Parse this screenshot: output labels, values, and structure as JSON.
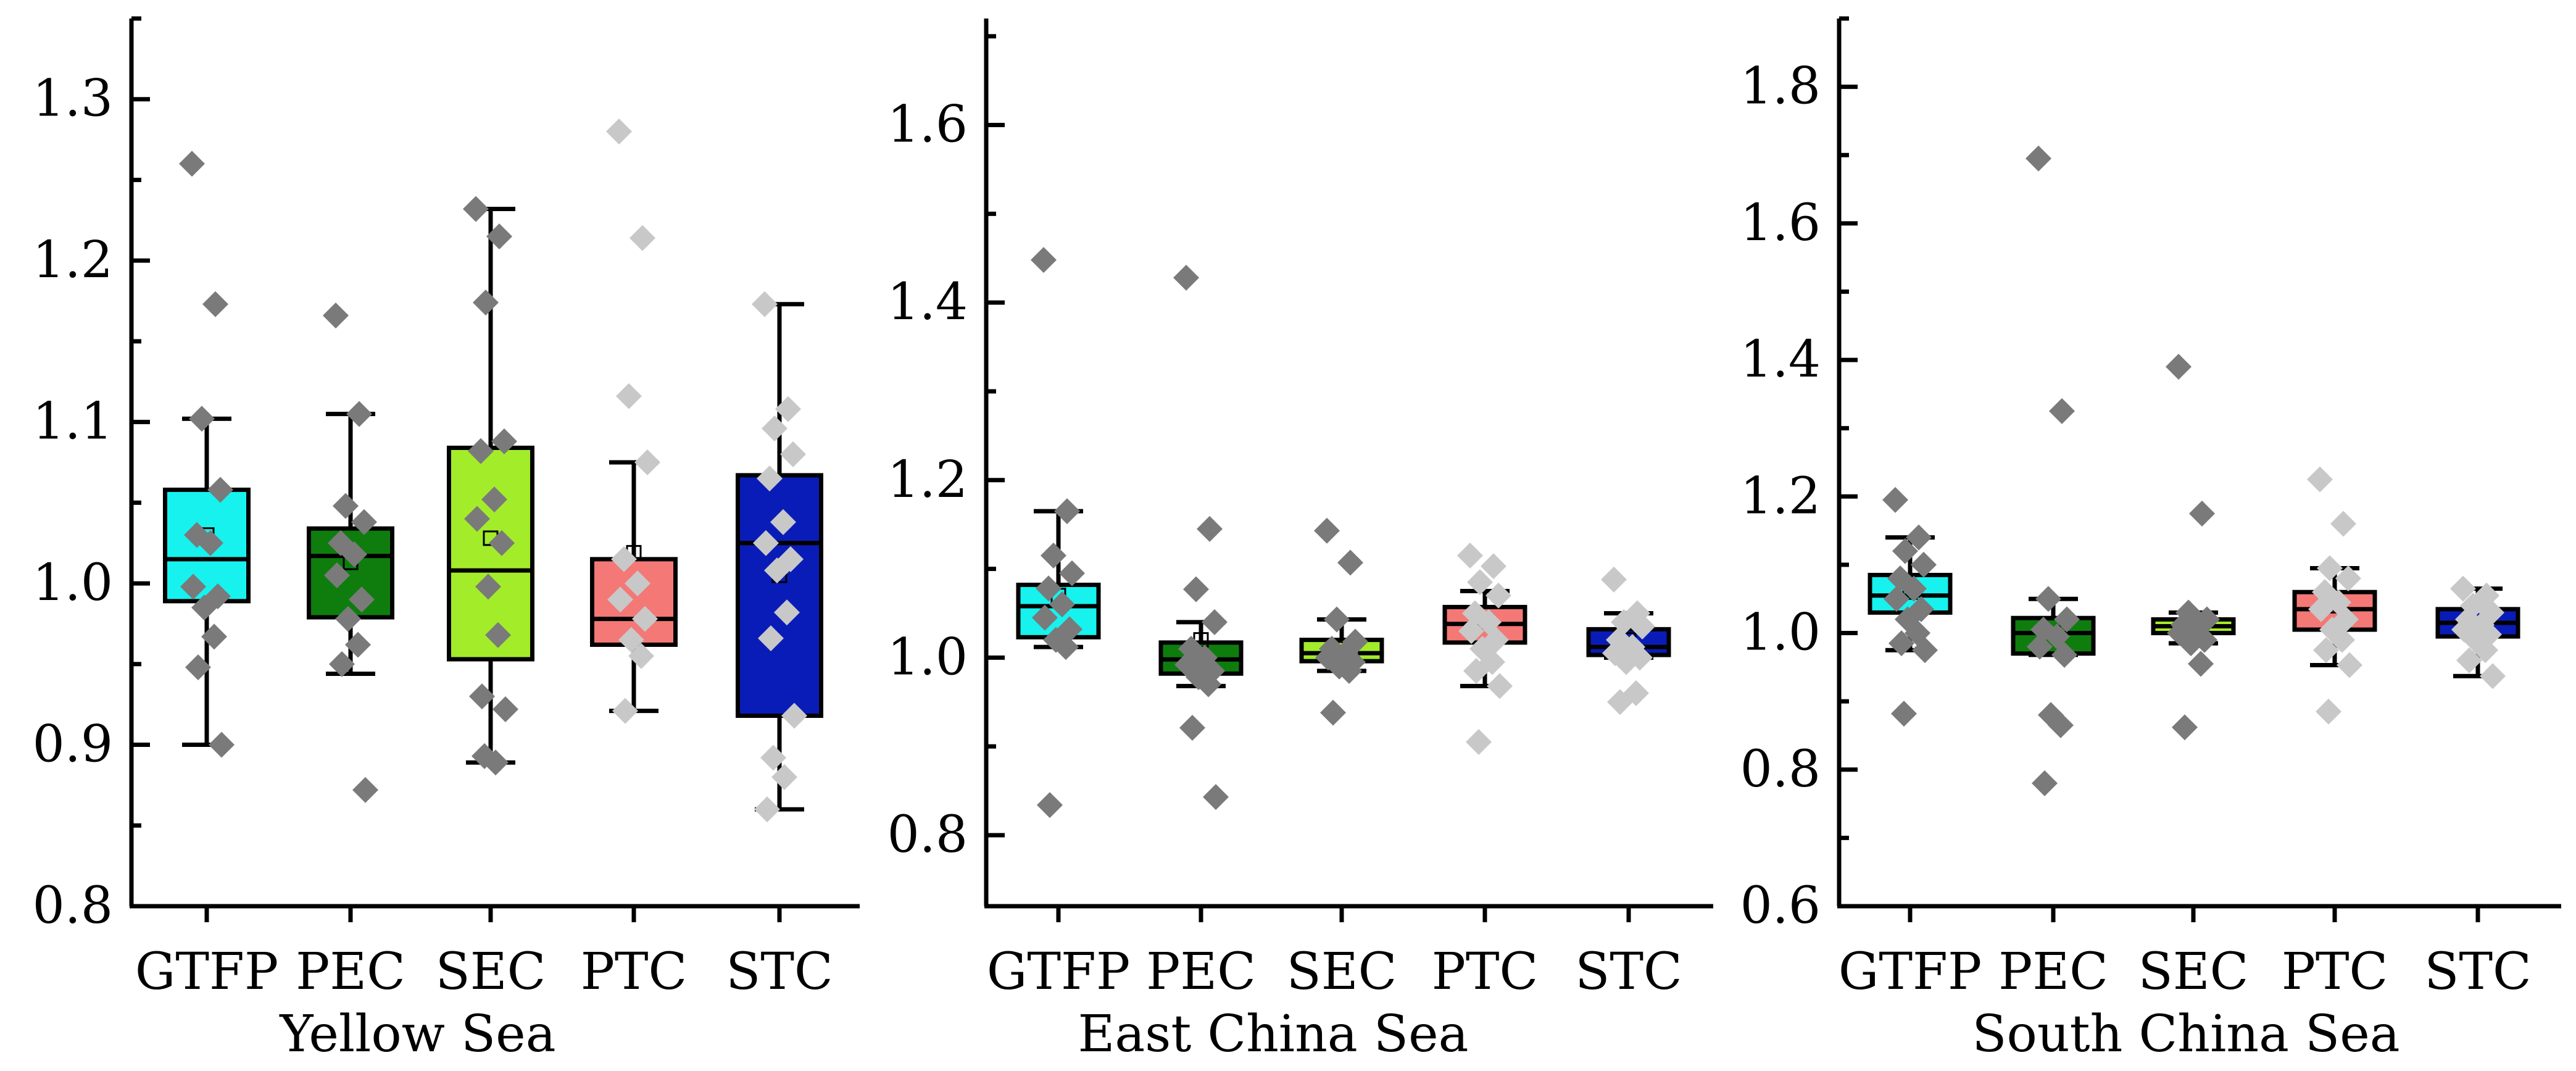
{
  "chart_data": [
    {
      "type": "box",
      "xlabel": "Yellow Sea",
      "ylim": [
        0.8,
        1.35
      ],
      "yticks": [
        0.8,
        0.9,
        1.0,
        1.1,
        1.2,
        1.3
      ],
      "ytick_labels": [
        "0.8",
        "0.9",
        "1.0",
        "1.1",
        "1.2",
        "1.3"
      ],
      "minor_step": 0.05,
      "categories": [
        "GTFP",
        "PEC",
        "SEC",
        "PTC",
        "STC"
      ],
      "boxes": [
        {
          "name": "GTFP",
          "color": "#17F2EE",
          "whisker_low": 0.9,
          "q1": 0.989,
          "median": 1.015,
          "q3": 1.058,
          "whisker_high": 1.102,
          "mean": 1.03,
          "points": [
            1.26,
            1.173,
            1.102,
            1.058,
            1.03,
            1.025,
            0.998,
            0.992,
            0.985,
            0.967,
            0.948,
            0.9
          ],
          "point_shade": "dark"
        },
        {
          "name": "PEC",
          "color": "#0E7D0E",
          "whisker_low": 0.944,
          "q1": 0.979,
          "median": 1.017,
          "q3": 1.034,
          "whisker_high": 1.105,
          "mean": 1.013,
          "points": [
            1.166,
            1.105,
            1.048,
            1.038,
            1.025,
            1.018,
            1.005,
            0.99,
            0.978,
            0.962,
            0.95,
            0.872
          ],
          "point_shade": "dark"
        },
        {
          "name": "SEC",
          "color": "#A3EC2A",
          "whisker_low": 0.889,
          "q1": 0.953,
          "median": 1.008,
          "q3": 1.084,
          "whisker_high": 1.232,
          "mean": 1.028,
          "points": [
            1.232,
            1.215,
            1.174,
            1.088,
            1.082,
            1.052,
            1.04,
            1.025,
            0.998,
            0.968,
            0.93,
            0.922,
            0.893,
            0.889
          ],
          "point_shade": "dark"
        },
        {
          "name": "PTC",
          "color": "#F47875",
          "whisker_low": 0.921,
          "q1": 0.962,
          "median": 0.978,
          "q3": 1.015,
          "whisker_high": 1.075,
          "mean": 1.019,
          "points": [
            1.28,
            1.214,
            1.116,
            1.075,
            1.015,
            1.0,
            0.99,
            0.978,
            0.965,
            0.955,
            0.921
          ],
          "point_shade": "light"
        },
        {
          "name": "STC",
          "color": "#0A1CB7",
          "whisker_low": 0.86,
          "q1": 0.918,
          "median": 1.025,
          "q3": 1.067,
          "whisker_high": 1.173,
          "mean": 1.005,
          "points": [
            1.173,
            1.108,
            1.096,
            1.08,
            1.065,
            1.038,
            1.025,
            1.015,
            1.008,
            0.982,
            0.966,
            0.918,
            0.892,
            0.88,
            0.86
          ],
          "point_shade": "light"
        }
      ]
    },
    {
      "type": "box",
      "xlabel": "East China Sea",
      "ylim": [
        0.72,
        1.72
      ],
      "yticks": [
        0.8,
        1.0,
        1.2,
        1.4,
        1.6
      ],
      "ytick_labels": [
        "0.8",
        "1.0",
        "1.2",
        "1.4",
        "1.6"
      ],
      "minor_step": 0.1,
      "categories": [
        "GTFP",
        "PEC",
        "SEC",
        "PTC",
        "STC"
      ],
      "boxes": [
        {
          "name": "GTFP",
          "color": "#17F2EE",
          "whisker_low": 1.012,
          "q1": 1.023,
          "median": 1.058,
          "q3": 1.082,
          "whisker_high": 1.165,
          "mean": 1.07,
          "points": [
            1.448,
            1.165,
            1.115,
            1.095,
            1.078,
            1.06,
            1.045,
            1.032,
            1.02,
            1.012,
            0.834
          ],
          "point_shade": "dark"
        },
        {
          "name": "PEC",
          "color": "#0E7D0E",
          "whisker_low": 0.968,
          "q1": 0.982,
          "median": 0.998,
          "q3": 1.017,
          "whisker_high": 1.04,
          "mean": 1.02,
          "points": [
            1.428,
            1.145,
            1.077,
            1.04,
            1.01,
            1.0,
            0.992,
            0.985,
            0.978,
            0.97,
            0.921,
            0.843
          ],
          "point_shade": "dark"
        },
        {
          "name": "SEC",
          "color": "#A3EC2A",
          "whisker_low": 0.985,
          "q1": 0.996,
          "median": 1.005,
          "q3": 1.02,
          "whisker_high": 1.043,
          "mean": 1.01,
          "points": [
            1.143,
            1.107,
            1.043,
            1.018,
            1.01,
            1.005,
            1.0,
            0.995,
            0.99,
            0.985,
            0.938
          ],
          "point_shade": "dark"
        },
        {
          "name": "PTC",
          "color": "#F47875",
          "whisker_low": 0.968,
          "q1": 1.017,
          "median": 1.038,
          "q3": 1.057,
          "whisker_high": 1.075,
          "mean": 1.04,
          "points": [
            1.115,
            1.103,
            1.085,
            1.07,
            1.05,
            1.04,
            1.03,
            1.02,
            1.01,
            0.995,
            0.985,
            0.968,
            0.905
          ],
          "point_shade": "light"
        },
        {
          "name": "STC",
          "color": "#0A1CB7",
          "whisker_low": 1.0,
          "q1": 1.003,
          "median": 1.012,
          "q3": 1.032,
          "whisker_high": 1.05,
          "mean": 1.02,
          "points": [
            1.088,
            1.05,
            1.04,
            1.035,
            1.02,
            1.012,
            1.005,
            1.0,
            0.995,
            0.96,
            0.95
          ],
          "point_shade": "light"
        }
      ]
    },
    {
      "type": "box",
      "xlabel": "South China Sea",
      "ylim": [
        0.6,
        1.9
      ],
      "yticks": [
        0.6,
        0.8,
        1.0,
        1.2,
        1.4,
        1.6,
        1.8
      ],
      "ytick_labels": [
        "0.6",
        "0.8",
        "1.0",
        "1.2",
        "1.4",
        "1.6",
        "1.8"
      ],
      "minor_step": 0.1,
      "categories": [
        "GTFP",
        "PEC",
        "SEC",
        "PTC",
        "STC"
      ],
      "boxes": [
        {
          "name": "GTFP",
          "color": "#17F2EE",
          "whisker_low": 0.975,
          "q1": 1.03,
          "median": 1.055,
          "q3": 1.085,
          "whisker_high": 1.14,
          "mean": 1.06,
          "points": [
            1.195,
            1.14,
            1.12,
            1.1,
            1.08,
            1.065,
            1.05,
            1.035,
            1.02,
            1.0,
            0.985,
            0.975,
            0.882
          ],
          "point_shade": "dark"
        },
        {
          "name": "PEC",
          "color": "#0E7D0E",
          "whisker_low": 0.968,
          "q1": 0.97,
          "median": 1.0,
          "q3": 1.022,
          "whisker_high": 1.05,
          "mean": 1.01,
          "points": [
            1.695,
            1.325,
            1.05,
            1.02,
            1.005,
            0.995,
            0.98,
            0.968,
            0.88,
            0.865,
            0.78
          ],
          "point_shade": "dark"
        },
        {
          "name": "SEC",
          "color": "#A3EC2A",
          "whisker_low": 0.985,
          "q1": 1.0,
          "median": 1.01,
          "q3": 1.02,
          "whisker_high": 1.03,
          "mean": 1.01,
          "points": [
            1.39,
            1.175,
            1.03,
            1.02,
            1.012,
            1.005,
            1.0,
            0.99,
            0.985,
            0.955,
            0.862
          ],
          "point_shade": "dark"
        },
        {
          "name": "PTC",
          "color": "#F47875",
          "whisker_low": 0.953,
          "q1": 1.005,
          "median": 1.035,
          "q3": 1.06,
          "whisker_high": 1.095,
          "mean": 1.04,
          "points": [
            1.225,
            1.16,
            1.095,
            1.08,
            1.06,
            1.045,
            1.035,
            1.02,
            1.005,
            0.99,
            0.975,
            0.953,
            0.885
          ],
          "point_shade": "light"
        },
        {
          "name": "STC",
          "color": "#0A1CB7",
          "whisker_low": 0.937,
          "q1": 0.995,
          "median": 1.015,
          "q3": 1.035,
          "whisker_high": 1.065,
          "mean": 1.01,
          "points": [
            1.065,
            1.055,
            1.04,
            1.03,
            1.02,
            1.012,
            1.005,
            0.998,
            0.99,
            0.975,
            0.96,
            0.937
          ],
          "point_shade": "light"
        }
      ]
    }
  ],
  "point_colors": {
    "dark": "#7A7A7A",
    "light": "#C8C8C8"
  }
}
